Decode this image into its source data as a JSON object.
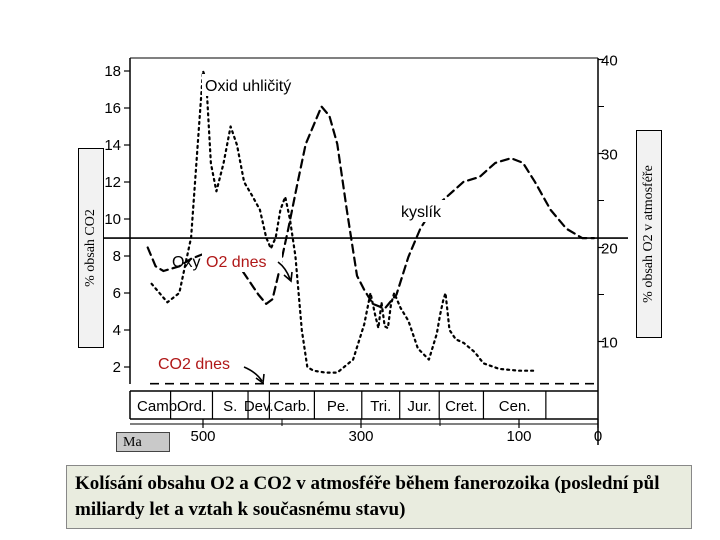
{
  "caption": "Kolísání obsahu O2 a CO2 v atmosféře během fanerozoika (poslední půl miliardy let a vztah k současnému stavu)",
  "colors": {
    "curves": "#000000",
    "red_labels": "#b01818"
  },
  "chart_data": {
    "type": "line",
    "x_unit_label": "Ma",
    "xlim": [
      570,
      0
    ],
    "x_ticks": [
      500,
      300,
      100,
      0
    ],
    "left_axis": {
      "label": "% obsah CO2",
      "range": [
        1,
        19
      ],
      "ticks": [
        2,
        4,
        6,
        8,
        10,
        12,
        14,
        16,
        18
      ]
    },
    "right_axis": {
      "label": "% obsah O2 v atmosféře",
      "range": [
        5,
        40
      ],
      "ticks": [
        10,
        20,
        30,
        40
      ]
    },
    "periods": [
      "Camb.",
      "Ord.",
      "S.",
      "Dev.",
      "Carb.",
      "Pe.",
      "Tri.",
      "Jur.",
      "Cret.",
      "Cen."
    ],
    "series": [
      {
        "name": "Oxid uhličitý",
        "axis": "left",
        "style": "dotted",
        "points": [
          [
            565,
            6.5
          ],
          [
            545,
            5.5
          ],
          [
            530,
            6
          ],
          [
            515,
            9
          ],
          [
            505,
            15
          ],
          [
            500,
            18
          ],
          [
            496,
            17.5
          ],
          [
            490,
            13
          ],
          [
            483,
            11.5
          ],
          [
            474,
            13
          ],
          [
            465,
            15
          ],
          [
            457,
            14
          ],
          [
            448,
            12
          ],
          [
            437,
            11.2
          ],
          [
            428,
            10.5
          ],
          [
            420,
            9
          ],
          [
            414,
            8.4
          ],
          [
            408,
            9
          ],
          [
            402,
            10.5
          ],
          [
            396,
            11.2
          ],
          [
            390,
            10
          ],
          [
            383,
            8
          ],
          [
            375,
            4
          ],
          [
            368,
            2
          ],
          [
            360,
            1.8
          ],
          [
            345,
            1.7
          ],
          [
            330,
            1.7
          ],
          [
            310,
            2.4
          ],
          [
            296,
            4.3
          ],
          [
            288,
            6
          ],
          [
            282,
            4.8
          ],
          [
            278,
            4.1
          ],
          [
            274,
            5.5
          ],
          [
            270,
            4.2
          ],
          [
            266,
            4.1
          ],
          [
            262,
            5.4
          ],
          [
            258,
            6
          ],
          [
            250,
            5.2
          ],
          [
            240,
            4.5
          ],
          [
            228,
            3
          ],
          [
            214,
            2.4
          ],
          [
            204,
            3.8
          ],
          [
            200,
            4.8
          ],
          [
            196,
            5.6
          ],
          [
            193,
            6
          ],
          [
            188,
            4
          ],
          [
            180,
            3.5
          ],
          [
            170,
            3.3
          ],
          [
            156,
            2.8
          ],
          [
            145,
            2.2
          ],
          [
            125,
            1.9
          ],
          [
            100,
            1.8
          ],
          [
            80,
            1.8
          ]
        ]
      },
      {
        "name": "kyslík",
        "axis": "right",
        "style": "dashed",
        "points": [
          [
            570,
            20
          ],
          [
            560,
            18
          ],
          [
            550,
            17.5
          ],
          [
            530,
            18
          ],
          [
            515,
            18.8
          ],
          [
            500,
            19.3
          ],
          [
            480,
            18.5
          ],
          [
            465,
            18
          ],
          [
            450,
            17.5
          ],
          [
            438,
            16
          ],
          [
            430,
            15
          ],
          [
            420,
            14
          ],
          [
            412,
            14.5
          ],
          [
            405,
            17
          ],
          [
            392,
            22
          ],
          [
            380,
            27
          ],
          [
            370,
            31
          ],
          [
            360,
            33
          ],
          [
            350,
            35
          ],
          [
            340,
            34
          ],
          [
            330,
            31
          ],
          [
            318,
            24
          ],
          [
            305,
            17
          ],
          [
            296,
            15.5
          ],
          [
            285,
            14
          ],
          [
            270,
            13.5
          ],
          [
            255,
            15
          ],
          [
            240,
            19
          ],
          [
            225,
            22
          ],
          [
            210,
            24
          ],
          [
            190,
            25.5
          ],
          [
            170,
            27
          ],
          [
            150,
            27.5
          ],
          [
            130,
            29
          ],
          [
            110,
            29.5
          ],
          [
            95,
            29
          ],
          [
            80,
            27
          ],
          [
            60,
            24
          ],
          [
            40,
            22
          ],
          [
            20,
            21
          ],
          [
            5,
            21
          ]
        ]
      }
    ],
    "reference_lines": [
      {
        "name": "O2 dnes",
        "axis": "right",
        "value": 21
      },
      {
        "name": "CO2 dnes",
        "axis": "left",
        "value": 1.1
      }
    ],
    "annotations": [
      "Oxid uhličitý",
      "kyslík",
      "Oxy",
      "O2 dnes",
      "CO2 dnes"
    ]
  }
}
